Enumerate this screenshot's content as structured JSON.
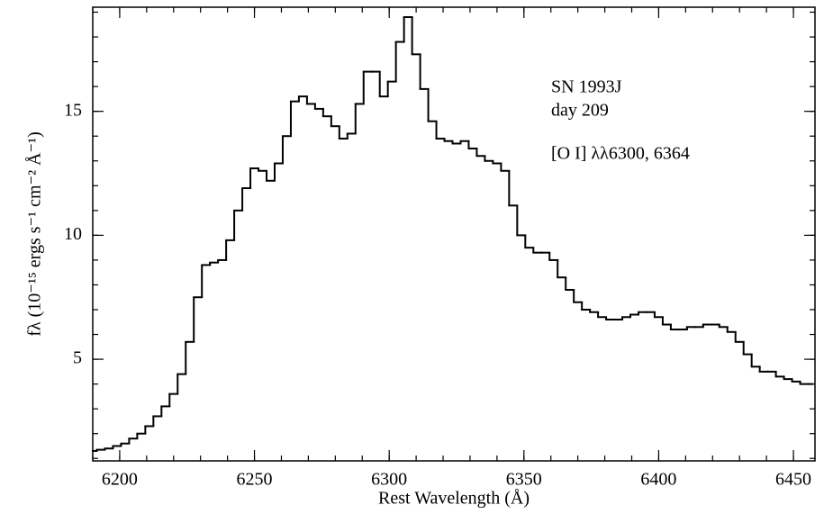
{
  "chart_data": {
    "type": "step-line",
    "annotations": [
      "SN 1993J",
      "day 209",
      "[O I] λλ6300, 6364"
    ],
    "xlabel": "Rest Wavelength (Å)",
    "ylabel": "fλ (10⁻¹⁵ ergs s⁻¹ cm⁻² Å⁻¹)",
    "xlim": [
      6190,
      6458
    ],
    "xticks": [
      6200,
      6250,
      6300,
      6350,
      6400,
      6450
    ],
    "ylim": [
      0.9,
      19.2
    ],
    "yticks": [
      5,
      10,
      15
    ],
    "color": "#000000",
    "x": [
      6190,
      6193,
      6196,
      6199,
      6202,
      6205,
      6208,
      6211,
      6214,
      6217,
      6220,
      6223,
      6226,
      6229,
      6232,
      6235,
      6238,
      6241,
      6244,
      6247,
      6250,
      6253,
      6256,
      6259,
      6262,
      6265,
      6268,
      6271,
      6274,
      6277,
      6280,
      6283,
      6286,
      6289,
      6292,
      6295,
      6298,
      6301,
      6304,
      6307,
      6310,
      6313,
      6316,
      6319,
      6322,
      6325,
      6328,
      6331,
      6334,
      6337,
      6340,
      6343,
      6346,
      6349,
      6352,
      6355,
      6358,
      6361,
      6364,
      6367,
      6370,
      6373,
      6376,
      6379,
      6382,
      6385,
      6388,
      6391,
      6394,
      6397,
      6400,
      6403,
      6406,
      6409,
      6412,
      6415,
      6418,
      6421,
      6424,
      6427,
      6430,
      6433,
      6436,
      6439,
      6442,
      6445,
      6448,
      6451,
      6454,
      6457
    ],
    "values": [
      1.3,
      1.35,
      1.4,
      1.5,
      1.6,
      1.8,
      2.0,
      2.3,
      2.7,
      3.1,
      3.6,
      4.4,
      5.7,
      7.5,
      8.8,
      8.9,
      9.0,
      9.8,
      11.0,
      11.9,
      12.7,
      12.6,
      12.2,
      12.9,
      14.0,
      15.4,
      15.6,
      15.3,
      15.1,
      14.8,
      14.4,
      13.9,
      14.1,
      15.3,
      16.6,
      16.6,
      15.6,
      16.2,
      17.8,
      18.8,
      17.3,
      15.9,
      14.6,
      13.9,
      13.8,
      13.7,
      13.8,
      13.5,
      13.2,
      13.0,
      12.9,
      12.6,
      11.2,
      10.0,
      9.5,
      9.3,
      9.3,
      9.0,
      8.3,
      7.8,
      7.3,
      7.0,
      6.9,
      6.7,
      6.6,
      6.6,
      6.7,
      6.8,
      6.9,
      6.9,
      6.7,
      6.4,
      6.2,
      6.2,
      6.3,
      6.3,
      6.4,
      6.4,
      6.3,
      6.1,
      5.7,
      5.2,
      4.7,
      4.5,
      4.5,
      4.3,
      4.2,
      4.1,
      4.0,
      4.0
    ]
  }
}
